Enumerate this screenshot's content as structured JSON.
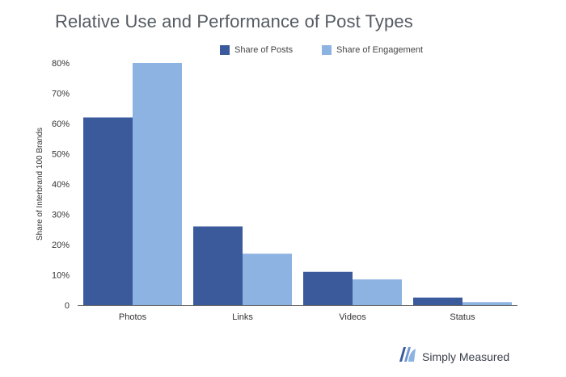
{
  "chart_data": {
    "type": "bar",
    "title": "Relative Use and Performance of Post Types",
    "ylabel": "Share of Interbrand 100 Brands",
    "xlabel": "",
    "categories": [
      "Photos",
      "Links",
      "Videos",
      "Status"
    ],
    "series": [
      {
        "name": "Share of Posts",
        "color": "#3a5a9b",
        "values": [
          62,
          26,
          11,
          2.5
        ]
      },
      {
        "name": "Share of Engagement",
        "color": "#8db3e2",
        "values": [
          80,
          17,
          8.5,
          1
        ]
      }
    ],
    "ylim": [
      0,
      80
    ],
    "yticks": [
      "0",
      "10%",
      "20%",
      "30%",
      "40%",
      "50%",
      "60%",
      "70%",
      "80%"
    ],
    "grid": false,
    "legend_position": "top"
  },
  "brand": {
    "name": "Simply Measured",
    "logo_icon": "simply-measured-logo-icon"
  }
}
